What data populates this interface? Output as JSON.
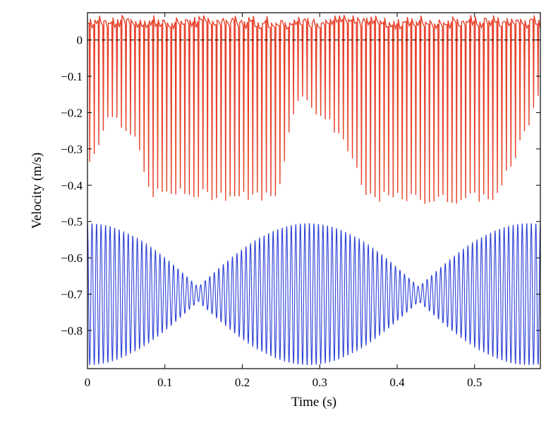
{
  "chart_data": {
    "type": "line",
    "title": "",
    "xlabel": "Time (s)",
    "ylabel": "Velocity (m/s)",
    "xlim": [
      0,
      0.585
    ],
    "ylim": [
      -0.905,
      0.075
    ],
    "xticks": [
      0,
      0.1,
      0.2,
      0.3,
      0.4,
      0.5
    ],
    "xtick_labels": [
      "0",
      "0.1",
      "0.2",
      "0.3",
      "0.4",
      "0.5"
    ],
    "yticks": [
      0,
      -0.1,
      -0.2,
      -0.3,
      -0.4,
      -0.5,
      -0.6,
      -0.7,
      -0.8
    ],
    "ytick_labels": [
      "0",
      "−0.1",
      "−0.2",
      "−0.3",
      "−0.4",
      "−0.5",
      "−0.6",
      "−0.7",
      "−0.8"
    ],
    "grid": false,
    "reference_line": {
      "y": 0,
      "style": "dashed",
      "color": "#000000"
    },
    "series": [
      {
        "color": "#e8402a",
        "style": "impulse-train",
        "baseline": 0.045,
        "spike_period_s": 0.00585,
        "envelope": [
          {
            "x": 0.0,
            "min": -0.35
          },
          {
            "x": 0.03,
            "min": -0.2
          },
          {
            "x": 0.06,
            "min": -0.26
          },
          {
            "x": 0.08,
            "min": -0.42
          },
          {
            "x": 0.2,
            "min": -0.43
          },
          {
            "x": 0.245,
            "min": -0.43
          },
          {
            "x": 0.27,
            "min": -0.15
          },
          {
            "x": 0.3,
            "min": -0.2
          },
          {
            "x": 0.33,
            "min": -0.27
          },
          {
            "x": 0.36,
            "min": -0.43
          },
          {
            "x": 0.45,
            "min": -0.44
          },
          {
            "x": 0.53,
            "min": -0.43
          },
          {
            "x": 0.585,
            "min": -0.15
          }
        ]
      },
      {
        "color": "#2a3fd6",
        "style": "oscillation",
        "center": -0.7,
        "max_amplitude": 0.195,
        "min_amplitude": 0.02,
        "carrier_period_s": 0.00585,
        "envelope_period_s": 0.285,
        "nodes_x": [
          0.143,
          0.428
        ]
      }
    ]
  }
}
